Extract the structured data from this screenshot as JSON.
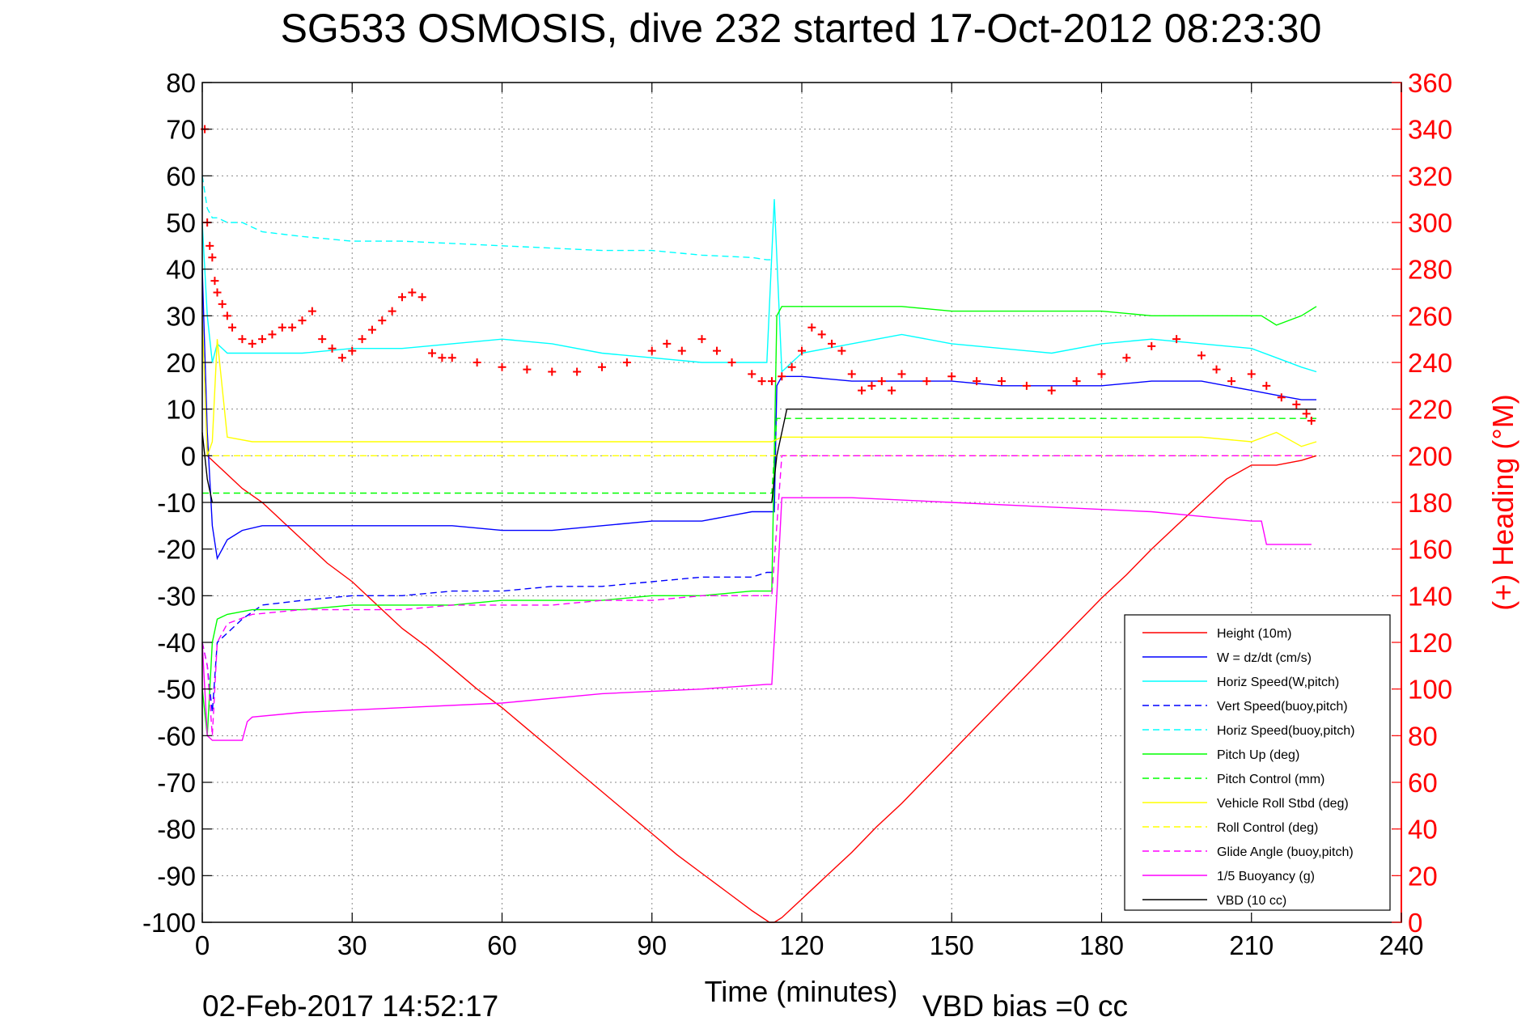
{
  "chart_data": {
    "type": "line",
    "title": "SG533 OSMOSIS, dive 232 started 17-Oct-2012 08:23:30",
    "xlabel": "Time (minutes)",
    "ylabel": "",
    "y2label": "(+) Heading (°M)",
    "xlim": [
      0,
      240
    ],
    "ylim": [
      -100,
      80
    ],
    "y2lim": [
      0,
      360
    ],
    "xticks": [
      0,
      30,
      60,
      90,
      120,
      150,
      180,
      210,
      240
    ],
    "yticks": [
      80,
      70,
      60,
      50,
      40,
      30,
      20,
      10,
      0,
      -10,
      -20,
      -30,
      -40,
      -50,
      -60,
      -70,
      -80,
      -90,
      -100
    ],
    "y2ticks": [
      360,
      340,
      320,
      300,
      280,
      260,
      240,
      220,
      200,
      180,
      160,
      140,
      120,
      100,
      80,
      60,
      40,
      20,
      0
    ],
    "grid": true,
    "legend_position": "bottom-right",
    "footer_left": "02-Feb-2017 14:52:17",
    "footer_right": "VBD bias =0 cc",
    "series": [
      {
        "name": "Height (10m)",
        "color": "#ff0000",
        "style": "solid",
        "x": [
          0,
          1,
          2,
          5,
          8,
          12,
          16,
          20,
          25,
          30,
          35,
          40,
          45,
          50,
          55,
          60,
          65,
          70,
          75,
          80,
          85,
          90,
          95,
          100,
          105,
          110,
          113.5,
          114.5,
          116,
          120,
          125,
          130,
          135,
          140,
          145,
          150,
          155,
          160,
          165,
          170,
          175,
          180,
          185,
          190,
          195,
          200,
          205,
          210,
          215,
          220,
          223
        ],
        "y": [
          0,
          0,
          -1,
          -4,
          -7,
          -10,
          -14,
          -18,
          -23,
          -27,
          -32,
          -37,
          -41,
          -45.5,
          -50,
          -54,
          -58.5,
          -63,
          -67.5,
          -72,
          -76.5,
          -81,
          -85.5,
          -89.5,
          -93.5,
          -97.5,
          -100,
          -100,
          -99,
          -95,
          -90,
          -85,
          -79.5,
          -74.5,
          -69,
          -63.5,
          -58,
          -52.5,
          -47,
          -41.5,
          -36,
          -30.5,
          -25.5,
          -20,
          -15,
          -10,
          -5,
          -2,
          -2,
          -1,
          0
        ]
      },
      {
        "name": "W = dz/dt (cm/s)",
        "color": "#0000ff",
        "style": "solid",
        "x": [
          0,
          1,
          2,
          3,
          5,
          8,
          12,
          20,
          30,
          40,
          50,
          60,
          70,
          80,
          90,
          100,
          110,
          113,
          114.5,
          115,
          116,
          120,
          130,
          140,
          150,
          160,
          170,
          180,
          190,
          200,
          210,
          215,
          220,
          223
        ],
        "y": [
          40,
          5,
          -15,
          -22,
          -18,
          -16,
          -15,
          -15,
          -15,
          -15,
          -15,
          -16,
          -16,
          -15,
          -14,
          -14,
          -12,
          -12,
          -12,
          15,
          17,
          17,
          16,
          16,
          16,
          15,
          15,
          15,
          16,
          16,
          14,
          13,
          12,
          12
        ]
      },
      {
        "name": "Horiz Speed(W,pitch)",
        "color": "#00ffff",
        "style": "solid",
        "x": [
          0,
          1,
          2,
          3,
          5,
          10,
          20,
          30,
          40,
          50,
          60,
          70,
          80,
          90,
          100,
          110,
          113,
          114.5,
          116,
          120,
          130,
          140,
          150,
          160,
          170,
          180,
          190,
          200,
          210,
          215,
          220,
          223
        ],
        "y": [
          50,
          30,
          20,
          24,
          22,
          22,
          22,
          23,
          23,
          24,
          25,
          24,
          22,
          21,
          20,
          20,
          20,
          55,
          18,
          22,
          24,
          26,
          24,
          23,
          22,
          24,
          25,
          24,
          23,
          21,
          19,
          18
        ]
      },
      {
        "name": "Vert Speed(buoy,pitch)",
        "color": "#0000ff",
        "style": "dashed",
        "x": [
          0,
          1,
          2,
          3,
          5,
          8,
          12,
          20,
          30,
          40,
          50,
          60,
          70,
          80,
          90,
          100,
          110,
          113,
          114
        ],
        "y": [
          -40,
          -45,
          -55,
          -40,
          -38,
          -35,
          -32,
          -31,
          -30,
          -30,
          -29,
          -29,
          -28,
          -28,
          -27,
          -26,
          -26,
          -25,
          -25
        ]
      },
      {
        "name": "Horiz Speed(buoy,pitch)",
        "color": "#00ffff",
        "style": "dashed",
        "x": [
          0,
          1,
          2,
          3,
          5,
          8,
          12,
          20,
          30,
          40,
          50,
          60,
          70,
          80,
          90,
          100,
          110,
          113,
          114
        ],
        "y": [
          60,
          53,
          51,
          51,
          50,
          50,
          48,
          47,
          46,
          46,
          45.5,
          45,
          44.5,
          44,
          44,
          43,
          42.5,
          42,
          42
        ]
      },
      {
        "name": "Pitch Up (deg)",
        "color": "#00ff00",
        "style": "solid",
        "x": [
          0,
          1,
          2,
          3,
          5,
          10,
          20,
          30,
          40,
          50,
          60,
          70,
          80,
          90,
          100,
          110,
          113,
          114,
          115,
          116,
          120,
          130,
          140,
          150,
          160,
          170,
          180,
          190,
          200,
          210,
          212,
          215,
          220,
          223
        ],
        "y": [
          -50,
          -60,
          -40,
          -35,
          -34,
          -33,
          -33,
          -32,
          -32,
          -32,
          -31,
          -31,
          -31,
          -30,
          -30,
          -29,
          -29,
          -29,
          30,
          32,
          32,
          32,
          32,
          31,
          31,
          31,
          31,
          30,
          30,
          30,
          30,
          28,
          30,
          32
        ]
      },
      {
        "name": "Pitch Control (mm)",
        "color": "#00ff00",
        "style": "dashed",
        "x": [
          0,
          2,
          3,
          114,
          115,
          223
        ],
        "y": [
          -8,
          -8,
          -8,
          -8,
          8,
          8
        ]
      },
      {
        "name": "Vehicle Roll Stbd (deg)",
        "color": "#ffff00",
        "style": "solid",
        "x": [
          0,
          1,
          2,
          3,
          5,
          10,
          20,
          30,
          40,
          50,
          60,
          70,
          80,
          90,
          100,
          110,
          114,
          116,
          120,
          130,
          140,
          150,
          160,
          170,
          180,
          190,
          200,
          210,
          215,
          220,
          223
        ],
        "y": [
          30,
          0,
          3,
          25,
          4,
          3,
          3,
          3,
          3,
          3,
          3,
          3,
          3,
          3,
          3,
          3,
          3,
          4,
          4,
          4,
          4,
          4,
          4,
          4,
          4,
          4,
          4,
          3,
          5,
          2,
          3
        ]
      },
      {
        "name": "Roll Control (deg)",
        "color": "#ffff00",
        "style": "dashed",
        "x": [
          0,
          223
        ],
        "y": [
          0,
          0
        ]
      },
      {
        "name": "Glide Angle (buoy,pitch)",
        "color": "#ff00ff",
        "style": "dashed",
        "x": [
          0,
          1,
          2,
          3,
          5,
          10,
          20,
          30,
          40,
          50,
          60,
          70,
          80,
          90,
          100,
          110,
          114,
          116,
          223
        ],
        "y": [
          -40,
          -45,
          -60,
          -40,
          -36,
          -34,
          -33,
          -33,
          -33,
          -32,
          -32,
          -32,
          -31,
          -31,
          -30,
          -30,
          -30,
          0,
          0
        ]
      },
      {
        "name": "1/5 Buoyancy (g)",
        "color": "#ff00ff",
        "style": "solid",
        "x": [
          0,
          1,
          2,
          8,
          9,
          10,
          20,
          40,
          60,
          80,
          100,
          113,
          114,
          115,
          116,
          120,
          130,
          150,
          170,
          190,
          210,
          212,
          213,
          220,
          222
        ],
        "y": [
          -40,
          -60,
          -61,
          -61,
          -57,
          -56,
          -55,
          -54,
          -53,
          -51,
          -50,
          -49,
          -49,
          -30,
          -9,
          -9,
          -9,
          -10,
          -11,
          -12,
          -14,
          -14,
          -19,
          -19,
          -19
        ]
      },
      {
        "name": "VBD (10 cc)",
        "color": "#000000",
        "style": "solid",
        "x": [
          0,
          1,
          2,
          3,
          113,
          114,
          115,
          116,
          117,
          223
        ],
        "y": [
          5,
          -5,
          -10,
          -10,
          -10,
          -10,
          0,
          5,
          10,
          10
        ]
      },
      {
        "name": "(+) Heading (°M)",
        "axis": "right",
        "color": "#ff0000",
        "style": "markers",
        "x": [
          0.5,
          1,
          1.5,
          2,
          2.5,
          3,
          4,
          5,
          6,
          8,
          10,
          12,
          14,
          16,
          18,
          20,
          22,
          24,
          26,
          28,
          30,
          32,
          34,
          36,
          38,
          40,
          42,
          44,
          46,
          48,
          50,
          55,
          60,
          65,
          70,
          75,
          80,
          85,
          90,
          93,
          96,
          100,
          103,
          106,
          110,
          112,
          114,
          116,
          118,
          120,
          122,
          124,
          126,
          128,
          130,
          132,
          134,
          136,
          138,
          140,
          145,
          150,
          155,
          160,
          165,
          170,
          175,
          180,
          185,
          190,
          195,
          200,
          203,
          206,
          210,
          213,
          216,
          219,
          221,
          222
        ],
        "y": [
          340,
          300,
          290,
          285,
          275,
          270,
          265,
          260,
          255,
          250,
          248,
          250,
          252,
          255,
          255,
          258,
          262,
          250,
          246,
          242,
          245,
          250,
          254,
          258,
          262,
          268,
          270,
          268,
          244,
          242,
          242,
          240,
          238,
          237,
          236,
          236,
          238,
          240,
          245,
          248,
          245,
          250,
          245,
          240,
          235,
          232,
          232,
          234,
          238,
          245,
          255,
          252,
          248,
          245,
          235,
          228,
          230,
          232,
          228,
          235,
          232,
          234,
          232,
          232,
          230,
          228,
          232,
          235,
          242,
          247,
          250,
          243,
          237,
          232,
          235,
          230,
          225,
          222,
          218,
          215
        ]
      }
    ]
  }
}
